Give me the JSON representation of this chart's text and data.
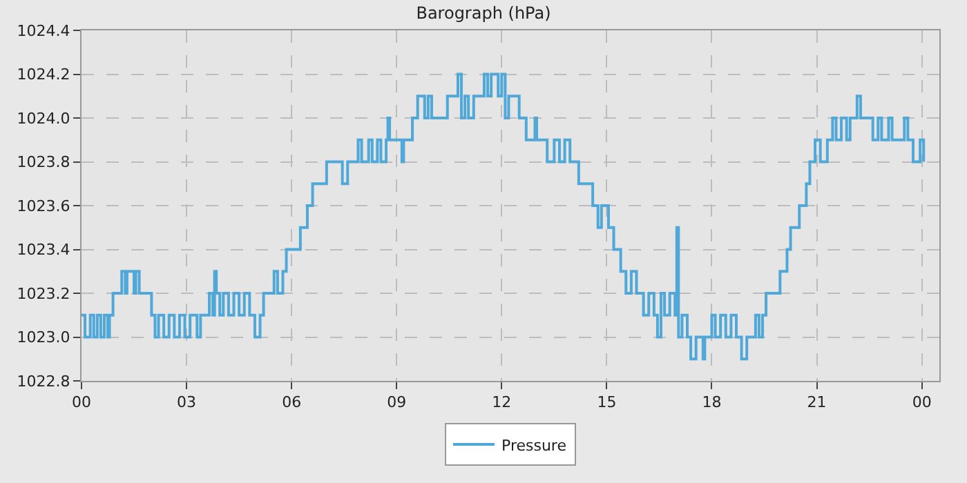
{
  "chart_data": {
    "type": "step",
    "title": "Barograph (hPa)",
    "xlim": [
      0,
      24.5
    ],
    "xticks": [
      {
        "value": 0,
        "label": "00"
      },
      {
        "value": 3,
        "label": "03"
      },
      {
        "value": 6,
        "label": "06"
      },
      {
        "value": 9,
        "label": "09"
      },
      {
        "value": 12,
        "label": "12"
      },
      {
        "value": 15,
        "label": "15"
      },
      {
        "value": 18,
        "label": "18"
      },
      {
        "value": 21,
        "label": "21"
      },
      {
        "value": 24,
        "label": "00"
      }
    ],
    "ylim": [
      1022.8,
      1024.4
    ],
    "yticks": [
      {
        "value": 1022.8,
        "label": "1022.8"
      },
      {
        "value": 1023.0,
        "label": "1023.0"
      },
      {
        "value": 1023.2,
        "label": "1023.2"
      },
      {
        "value": 1023.4,
        "label": "1023.4"
      },
      {
        "value": 1023.6,
        "label": "1023.6"
      },
      {
        "value": 1023.8,
        "label": "1023.8"
      },
      {
        "value": 1024.0,
        "label": "1024.0"
      },
      {
        "value": 1024.2,
        "label": "1024.2"
      },
      {
        "value": 1024.4,
        "label": "1024.4"
      }
    ],
    "grid": true,
    "legend": "bottom",
    "series": [
      {
        "name": "Pressure",
        "color": "#4fa8d8",
        "x": [
          0,
          0.1,
          0.25,
          0.35,
          0.45,
          0.55,
          0.65,
          0.75,
          0.8,
          0.9,
          1.15,
          1.25,
          1.3,
          1.5,
          1.55,
          1.65,
          2.0,
          2.1,
          2.2,
          2.35,
          2.5,
          2.65,
          2.8,
          2.95,
          3.1,
          3.3,
          3.4,
          3.65,
          3.75,
          3.8,
          3.85,
          3.95,
          4.05,
          4.2,
          4.35,
          4.5,
          4.65,
          4.8,
          4.95,
          5.1,
          5.2,
          5.5,
          5.6,
          5.75,
          5.85,
          6.25,
          6.45,
          6.6,
          7.0,
          7.45,
          7.6,
          7.9,
          8.0,
          8.2,
          8.3,
          8.45,
          8.55,
          8.7,
          8.75,
          8.8,
          9.15,
          9.2,
          9.45,
          9.6,
          9.8,
          9.9,
          10.0,
          10.45,
          10.75,
          10.85,
          10.95,
          11.05,
          11.2,
          11.5,
          11.6,
          11.7,
          11.9,
          12.0,
          12.1,
          12.2,
          12.5,
          12.7,
          12.95,
          13.0,
          13.3,
          13.5,
          13.65,
          13.8,
          13.95,
          14.2,
          14.6,
          14.75,
          14.85,
          15.05,
          15.2,
          15.4,
          15.55,
          15.7,
          15.85,
          16.05,
          16.2,
          16.35,
          16.45,
          16.55,
          16.65,
          16.8,
          16.95,
          17.0,
          17.05,
          17.15,
          17.3,
          17.4,
          17.55,
          17.75,
          17.8,
          18.0,
          18.1,
          18.25,
          18.4,
          18.55,
          18.7,
          18.85,
          19.0,
          19.25,
          19.35,
          19.45,
          19.55,
          19.95,
          20.15,
          20.25,
          20.5,
          20.7,
          20.8,
          20.95,
          21.1,
          21.3,
          21.45,
          21.55,
          21.7,
          21.85,
          21.95,
          22.15,
          22.25,
          22.6,
          22.75,
          22.85,
          23.05,
          23.15,
          23.5,
          23.6,
          23.75,
          23.95,
          24.05
        ],
        "values": [
          1023.1,
          1023.0,
          1023.1,
          1023.0,
          1023.1,
          1023.0,
          1023.1,
          1023.0,
          1023.1,
          1023.2,
          1023.3,
          1023.2,
          1023.3,
          1023.2,
          1023.3,
          1023.2,
          1023.1,
          1023.0,
          1023.1,
          1023.0,
          1023.1,
          1023.0,
          1023.1,
          1023.0,
          1023.1,
          1023.0,
          1023.1,
          1023.2,
          1023.1,
          1023.3,
          1023.2,
          1023.1,
          1023.2,
          1023.1,
          1023.2,
          1023.1,
          1023.2,
          1023.1,
          1023.0,
          1023.1,
          1023.2,
          1023.3,
          1023.2,
          1023.3,
          1023.4,
          1023.5,
          1023.6,
          1023.7,
          1023.8,
          1023.7,
          1023.8,
          1023.9,
          1023.8,
          1023.9,
          1023.8,
          1023.9,
          1023.8,
          1023.9,
          1024.0,
          1023.9,
          1023.8,
          1023.9,
          1024.0,
          1024.1,
          1024.0,
          1024.1,
          1024.0,
          1024.1,
          1024.2,
          1024.0,
          1024.1,
          1024.0,
          1024.1,
          1024.2,
          1024.1,
          1024.2,
          1024.1,
          1024.2,
          1024.0,
          1024.1,
          1024.0,
          1023.9,
          1024.0,
          1023.9,
          1023.8,
          1023.9,
          1023.8,
          1023.9,
          1023.8,
          1023.7,
          1023.6,
          1023.5,
          1023.6,
          1023.5,
          1023.4,
          1023.3,
          1023.2,
          1023.3,
          1023.2,
          1023.1,
          1023.2,
          1023.1,
          1023.0,
          1023.2,
          1023.1,
          1023.2,
          1023.1,
          1023.5,
          1023.0,
          1023.1,
          1023.0,
          1022.9,
          1023.0,
          1022.9,
          1023.0,
          1023.1,
          1023.0,
          1023.1,
          1023.0,
          1023.1,
          1023.0,
          1022.9,
          1023.0,
          1023.1,
          1023.0,
          1023.1,
          1023.2,
          1023.3,
          1023.4,
          1023.5,
          1023.6,
          1023.7,
          1023.8,
          1023.9,
          1023.8,
          1023.9,
          1024.0,
          1023.9,
          1024.0,
          1023.9,
          1024.0,
          1024.1,
          1024.0,
          1023.9,
          1024.0,
          1023.9,
          1024.0,
          1023.9,
          1024.0,
          1023.9,
          1023.8,
          1023.9,
          1023.8
        ]
      }
    ]
  }
}
